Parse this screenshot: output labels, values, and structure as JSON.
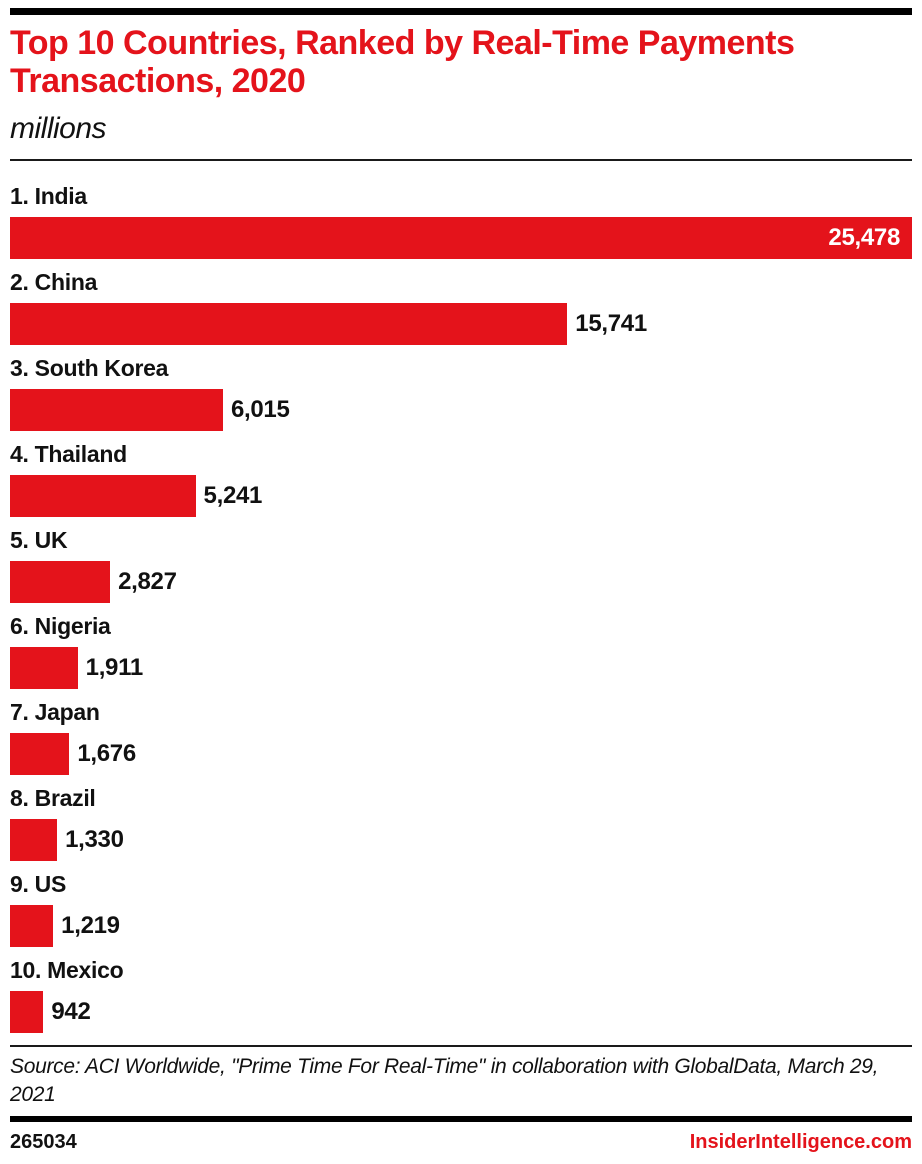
{
  "colors": {
    "accent_red": "#e4131b",
    "text_black": "#111111",
    "bar_value_inside": "#ffffff"
  },
  "header": {
    "title": "Top 10 Countries, Ranked by Real-Time Payments Transactions, 2020",
    "subtitle": "millions"
  },
  "chart_data": {
    "type": "bar",
    "orientation": "horizontal",
    "title": "Top 10 Countries, Ranked by Real-Time Payments Transactions, 2020",
    "unit_label": "millions",
    "categories": [
      "India",
      "China",
      "South Korea",
      "Thailand",
      "UK",
      "Nigeria",
      "Japan",
      "Brazil",
      "US",
      "Mexico"
    ],
    "labels": [
      "1. India",
      "2. China",
      "3. South Korea",
      "4. Thailand",
      "5. UK",
      "6. Nigeria",
      "7. Japan",
      "8. Brazil",
      "9. US",
      "10. Mexico"
    ],
    "values": [
      25478,
      15741,
      6015,
      5241,
      2827,
      1911,
      1676,
      1330,
      1219,
      942
    ],
    "value_labels": [
      "25,478",
      "15,741",
      "6,015",
      "5,241",
      "2,827",
      "1,911",
      "1,676",
      "1,330",
      "1,219",
      "942"
    ],
    "xlim": [
      0,
      25478
    ],
    "bar_color": "#e4131b",
    "grid": false,
    "legend": false,
    "value_label_position": "end-of-bar, inside bar when bar nearly full width"
  },
  "footer": {
    "source": "Source: ACI Worldwide, \"Prime Time For Real-Time\" in collaboration with GlobalData, March 29, 2021",
    "chart_id": "265034",
    "site": "InsiderIntelligence.com"
  }
}
